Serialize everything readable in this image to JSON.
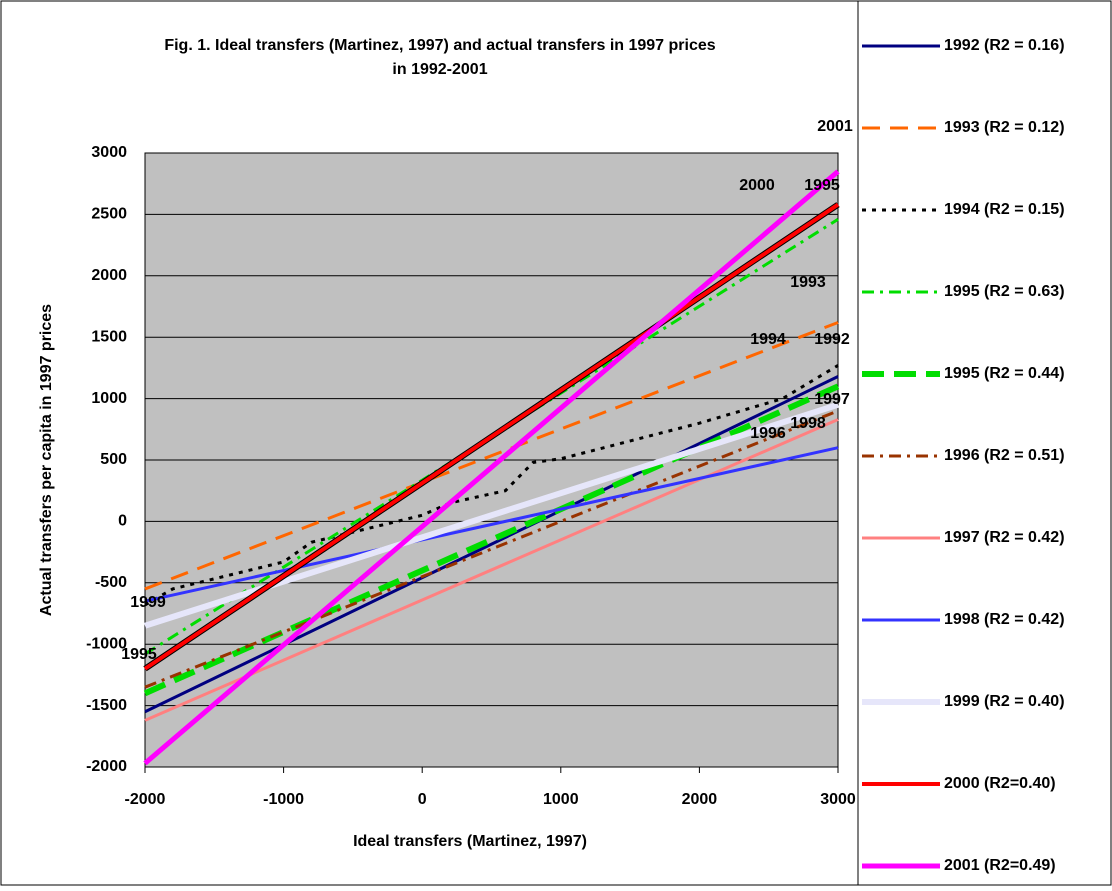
{
  "chart_data": {
    "type": "line",
    "title": [
      "Fig. 1. Ideal transfers (Martinez, 1997) and actual transfers in 1997 prices",
      "in 1992-2001"
    ],
    "x_label": "Ideal transfers (Martinez, 1997)",
    "y_label": "Actual transfers per capita in 1997 prices",
    "xlim": [
      -2000,
      3000
    ],
    "ylim": [
      -2000,
      3000
    ],
    "xticks": [
      -2000,
      -1000,
      0,
      1000,
      2000,
      3000
    ],
    "yticks": [
      -2000,
      -1500,
      -1000,
      -500,
      0,
      500,
      1000,
      1500,
      2000,
      2500,
      3000
    ],
    "plot_background": "#c0c0c0",
    "legend": "right",
    "series": [
      {
        "name": "1992 (R2 = 0.16)",
        "color": "#000080",
        "style": "solid",
        "x": [
          -2000,
          3000
        ],
        "values": [
          -1550,
          1180
        ]
      },
      {
        "name": "1993 (R2 = 0.12)",
        "color": "#ff6600",
        "style": "dashed",
        "x": [
          -2000,
          3000
        ],
        "values": [
          -550,
          1620
        ]
      },
      {
        "name": "1994 (R2 = 0.15)",
        "color": "#000000",
        "style": "dotted",
        "x": [
          -2000,
          -1800,
          -1000,
          -800,
          0,
          200,
          600,
          800,
          1000,
          2000,
          2600,
          3000
        ],
        "values": [
          -680,
          -550,
          -330,
          -170,
          50,
          150,
          250,
          480,
          510,
          800,
          1000,
          1270
        ]
      },
      {
        "name": "1995 (R2 = 0.63)",
        "color": "#00dd00",
        "style": "dashdot",
        "x": [
          -2000,
          3000
        ],
        "values": [
          -1080,
          2460
        ]
      },
      {
        "name": "1995 (R2 = 0.44)",
        "color": "#00dd00",
        "style": "longdash",
        "x": [
          -2000,
          3000
        ],
        "values": [
          -1400,
          1100
        ]
      },
      {
        "name": "1996 (R2 = 0.51)",
        "color": "#993300",
        "style": "dashdot",
        "x": [
          -2000,
          3000
        ],
        "values": [
          -1350,
          900
        ]
      },
      {
        "name": "1997 (R2 = 0.42)",
        "color": "#ff8080",
        "style": "solid",
        "x": [
          -2000,
          3000
        ],
        "values": [
          -1620,
          830
        ]
      },
      {
        "name": "1998 (R2 = 0.42)",
        "color": "#3333ff",
        "style": "solid",
        "x": [
          -2000,
          3000
        ],
        "values": [
          -650,
          600
        ]
      },
      {
        "name": "1999 (R2 = 0.40)",
        "color": "#e6e6fa",
        "style": "solid",
        "x": [
          -2000,
          3000
        ],
        "values": [
          -850,
          950
        ]
      },
      {
        "name": "2000 (R2=0.40)",
        "color": "#ff0000",
        "style": "solid",
        "x": [
          -2000,
          3000
        ],
        "values": [
          -1200,
          2580
        ]
      },
      {
        "name": "2001 (R2=0.49)",
        "color": "#ff00ff",
        "style": "solid",
        "x": [
          -2000,
          3000
        ],
        "values": [
          -1970,
          2850
        ]
      }
    ],
    "annotations": [
      "2001",
      "2000",
      "1995",
      "1993",
      "1994",
      "1992",
      "1996",
      "1997",
      "1998",
      "1999",
      "1995"
    ]
  }
}
